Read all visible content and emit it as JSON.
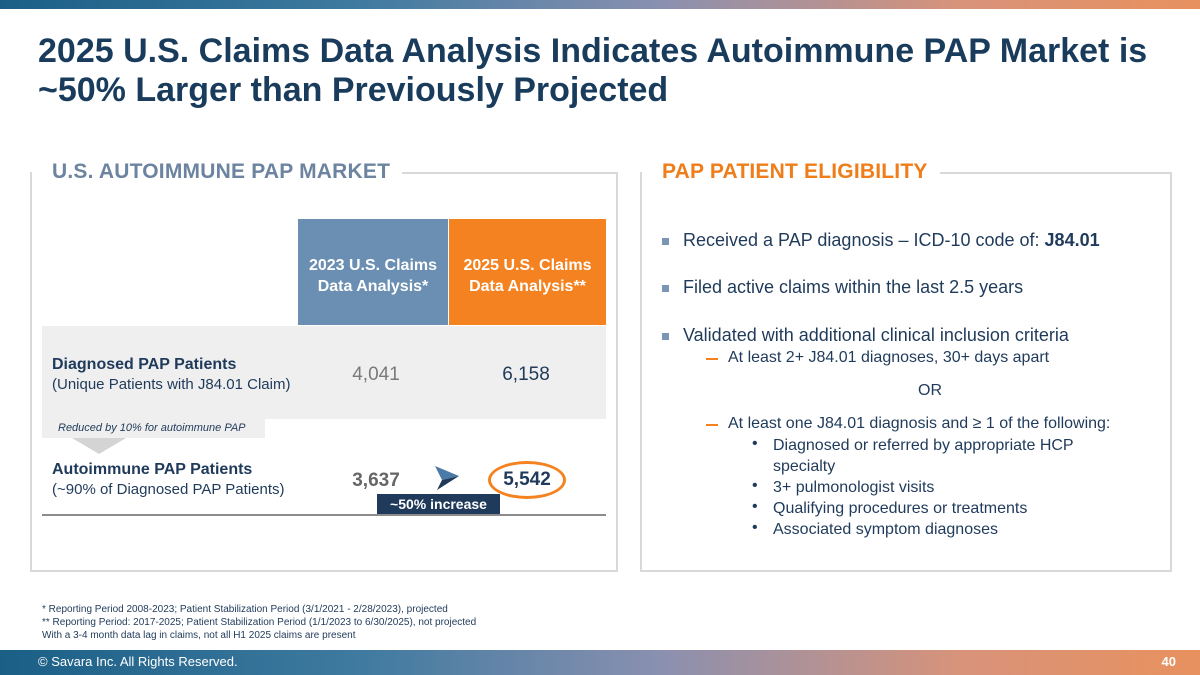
{
  "title": "2025 U.S. Claims Data Analysis Indicates Autoimmune PAP Market is ~50% Larger than Previously Projected",
  "left_panel": {
    "heading": "U.S. AUTOIMMUNE PAP MARKET",
    "col_2023_line1": "2023 U.S. Claims",
    "col_2023_line2": "Data Analysis*",
    "col_2025_line1": "2025 U.S. Claims",
    "col_2025_line2": "Data Analysis**",
    "row_diag_title": "Diagnosed PAP Patients",
    "row_diag_sub": "(Unique Patients with J84.01 Claim)",
    "row_diag_2023": "4,041",
    "row_diag_2025": "6,158",
    "reduced_note": "Reduced by 10% for autoimmune PAP",
    "row_auto_title": "Autoimmune PAP Patients",
    "row_auto_sub": "(~90% of Diagnosed PAP Patients)",
    "row_auto_2023": "3,637",
    "row_auto_2025": "5,542",
    "increase_badge": "~50% increase"
  },
  "right_panel": {
    "heading": "PAP PATIENT ELIGIBILITY",
    "bullet1_text": "Received a PAP diagnosis – ICD-10 code of: ",
    "bullet1_code": "J84.01",
    "bullet2": "Filed active claims within the last 2.5 years",
    "bullet3": "Validated with additional clinical inclusion criteria",
    "sub1": "At least 2+ J84.01 diagnoses, 30+ days apart",
    "or_text": "OR",
    "sub2": "At least one J84.01 diagnosis and ≥ 1 of the following:",
    "subsub1_line1": "Diagnosed or referred by appropriate HCP",
    "subsub1_line2": "specialty",
    "subsub2": "3+ pulmonologist visits",
    "subsub3": "Qualifying procedures or treatments",
    "subsub4": "Associated symptom diagnoses",
    "bullet_glyph": "•"
  },
  "footnotes": {
    "line1": "*  Reporting Period 2008-2023; Patient Stabilization Period (3/1/2021 - 2/28/2023), projected",
    "line2": "** Reporting Period: 2017-2025; Patient Stabilization Period (1/1/2023 to 6/30/2025), not projected",
    "line3": "With a 3-4 month data lag in claims, not all H1 2025 claims are present"
  },
  "footer": {
    "copyright": "© Savara Inc. All Rights Reserved.",
    "page_number": "40"
  },
  "colors": {
    "accent_orange": "#f58220",
    "accent_blue": "#6b8fb2",
    "navy": "#1f3a5a"
  },
  "icons": {
    "logo": "savara-arrow-logo-icon"
  }
}
